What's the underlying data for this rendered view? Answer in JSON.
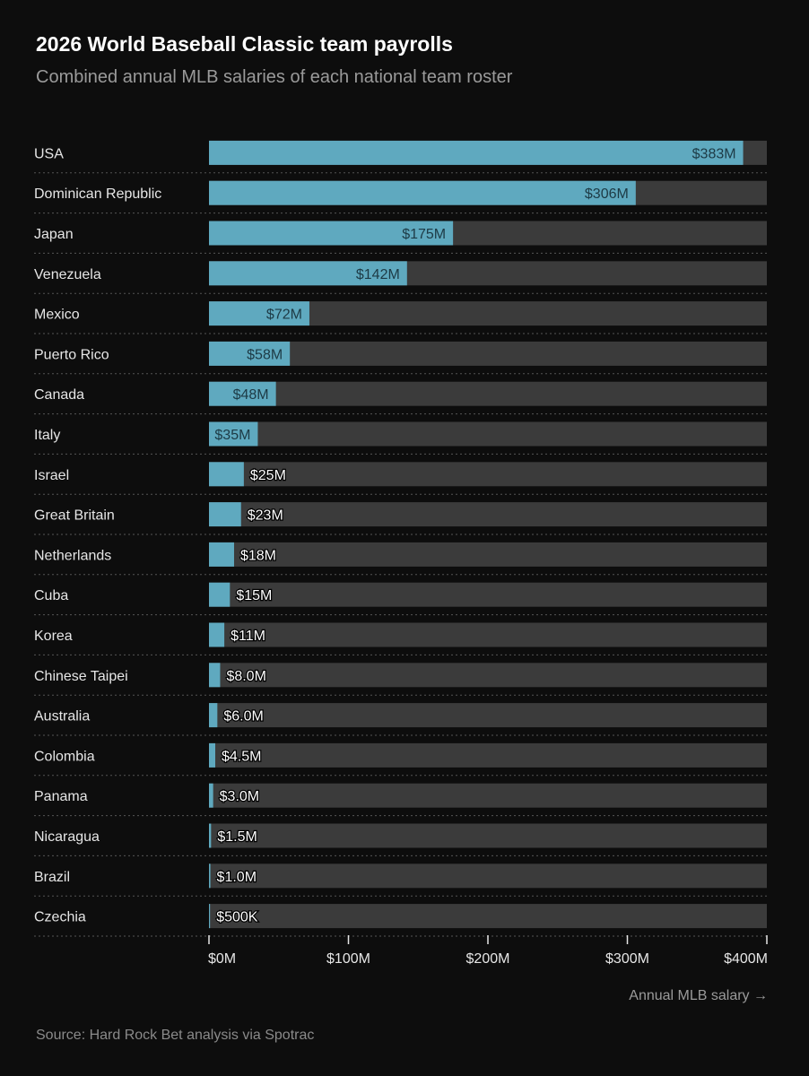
{
  "header": {
    "title": "2026 World Baseball Classic team payrolls",
    "subtitle": "Combined annual MLB salaries of each national team roster"
  },
  "footer": {
    "axis_caption": "Annual MLB salary →",
    "source": "Source: Hard Rock Bet analysis via Spotrac"
  },
  "colors": {
    "background": "#0d0d0d",
    "bar": "#5fa9bf",
    "track": "#3b3b3b",
    "label_text": "#e6e6e6",
    "value_text_on_bar": "#1d3a45",
    "value_text_on_track": "#ffffff",
    "grid": "#555555"
  },
  "chart_data": {
    "type": "bar",
    "orientation": "horizontal",
    "title": "2026 World Baseball Classic team payrolls",
    "subtitle": "Combined annual MLB salaries of each national team roster",
    "xlabel": "Annual MLB salary →",
    "ylabel": "",
    "xlim": [
      0,
      400
    ],
    "unit": "$M",
    "ticks": [
      {
        "value": 0,
        "label": "$0M"
      },
      {
        "value": 100,
        "label": "$100M"
      },
      {
        "value": 200,
        "label": "$200M"
      },
      {
        "value": 300,
        "label": "$300M"
      },
      {
        "value": 400,
        "label": "$400M"
      }
    ],
    "categories": [
      "USA",
      "Dominican Republic",
      "Japan",
      "Venezuela",
      "Mexico",
      "Puerto Rico",
      "Canada",
      "Italy",
      "Israel",
      "Great Britain",
      "Netherlands",
      "Cuba",
      "Korea",
      "Chinese Taipei",
      "Australia",
      "Colombia",
      "Panama",
      "Nicaragua",
      "Brazil",
      "Czechia"
    ],
    "values": [
      383,
      306,
      175,
      142,
      72,
      58,
      48,
      35,
      25,
      23,
      18,
      15,
      11,
      8,
      6,
      4.5,
      3,
      1.5,
      1,
      0.5
    ],
    "value_labels": [
      "$383M",
      "$306M",
      "$175M",
      "$142M",
      "$72M",
      "$58M",
      "$48M",
      "$35M",
      "$25M",
      "$23M",
      "$18M",
      "$15M",
      "$11M",
      "$8.0M",
      "$6.0M",
      "$4.5M",
      "$3.0M",
      "$1.5M",
      "$1.0M",
      "$500K"
    ]
  }
}
